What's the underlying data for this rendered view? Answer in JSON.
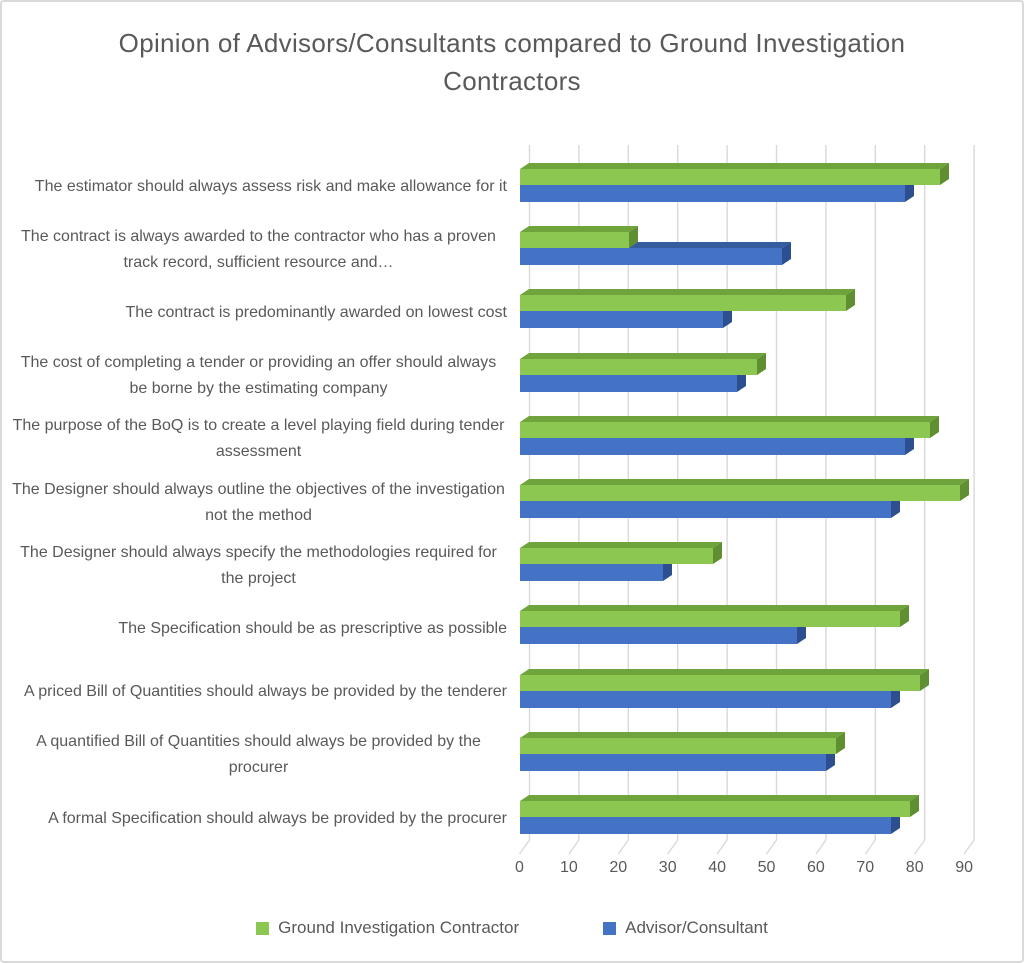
{
  "title": "Opinion of Advisors/Consultants compared to  Ground Investigation Contractors",
  "chart_data": {
    "type": "bar",
    "orientation": "horizontal",
    "effect": "3d",
    "title": "Opinion of Advisors/Consultants compared to  Ground Investigation Contractors",
    "xlabel": "",
    "ylabel": "",
    "xlim": [
      0,
      90
    ],
    "xticks": [
      0,
      10,
      20,
      30,
      40,
      50,
      60,
      70,
      80,
      90
    ],
    "grid": true,
    "legend_position": "bottom",
    "categories": [
      "The estimator should always assess risk and make allowance for it",
      "The contract is always awarded to the contractor who has a proven track record, sufficient resource and…",
      "The contract is predominantly awarded on lowest cost",
      "The cost of completing a tender or providing an offer should always be borne by the estimating company",
      "The purpose of the BoQ is to create a level playing field during tender assessment",
      "The Designer should always outline the objectives of the investigation not the method",
      "The Designer should always specify the methodologies required for the project",
      "The Specification should be as prescriptive as possible",
      "A priced Bill of Quantities should always be provided by the tenderer",
      "A quantified Bill of Quantities should always be provided by the procurer",
      "A formal Specification should always be provided by the procurer"
    ],
    "series": [
      {
        "name": "Ground Investigation Contractor",
        "color": "#8CC751",
        "color_top": "#6FA43C",
        "color_side": "#5F8F31",
        "values": [
          85,
          22,
          66,
          48,
          83,
          89,
          39,
          77,
          81,
          64,
          79
        ]
      },
      {
        "name": "Advisor/Consultant",
        "color": "#4472C4",
        "color_top": "#365CA0",
        "color_side": "#2E4F8F",
        "values": [
          78,
          53,
          41,
          44,
          78,
          75,
          29,
          56,
          75,
          62,
          75
        ]
      }
    ]
  },
  "axis": {
    "text_color": "#595959",
    "gridline_color": "#D9D9D9"
  }
}
